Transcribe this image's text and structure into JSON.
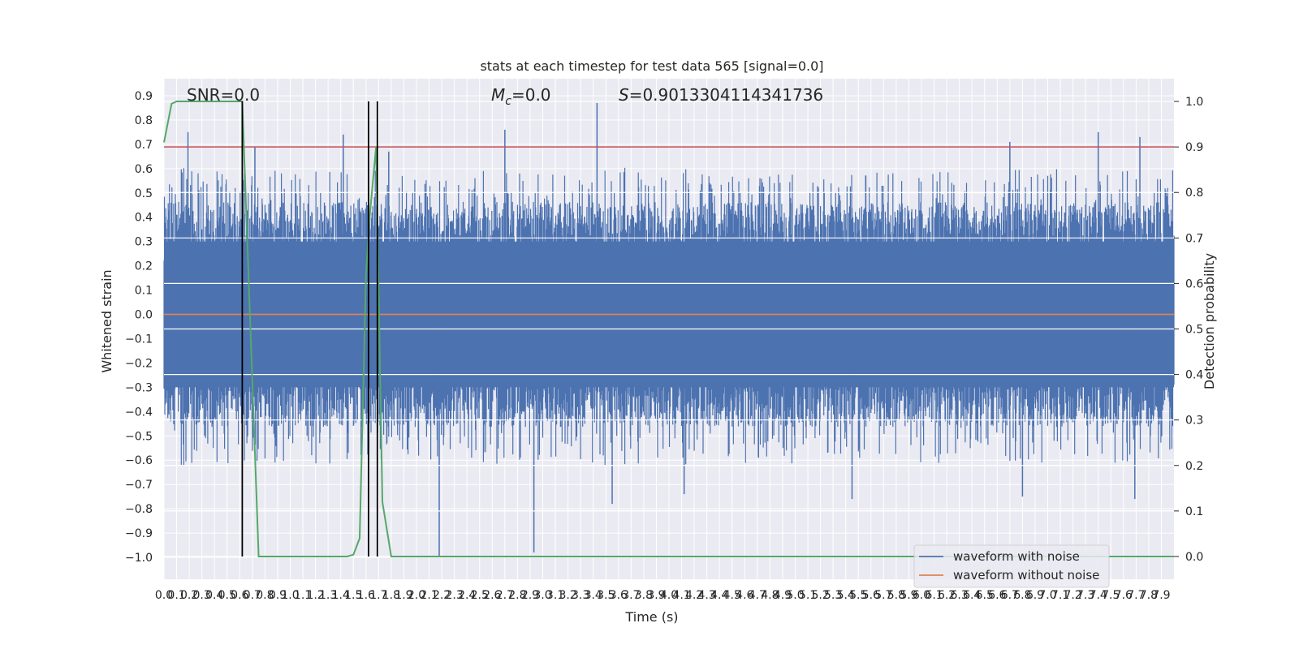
{
  "chart_data": {
    "type": "line",
    "title": "stats at each timestep for test data 565 [signal=0.0]",
    "xlabel": "Time (s)",
    "ylabel": "Whitened strain",
    "y2label": "Detection probability",
    "xlim": [
      0.0,
      8.0
    ],
    "ylim": [
      -1.09,
      0.97
    ],
    "y2lim": [
      -0.05,
      1.05
    ],
    "grid": true,
    "legend_position": "lower-right",
    "annotations": {
      "snr": "SNR=0.0",
      "mc": "=0.0",
      "s": "=0.9013304114341736"
    },
    "xticks": [
      "0.0",
      "0.1",
      "0.2",
      "0.3",
      "0.4",
      "0.5",
      "0.6",
      "0.7",
      "0.8",
      "0.9",
      "1.0",
      "1.1",
      "1.2",
      "1.3",
      "1.4",
      "1.5",
      "1.6",
      "1.7",
      "1.8",
      "1.9",
      "2.0",
      "2.1",
      "2.2",
      "2.3",
      "2.4",
      "2.5",
      "2.6",
      "2.7",
      "2.8",
      "2.9",
      "3.0",
      "3.1",
      "3.2",
      "3.3",
      "3.4",
      "3.5",
      "3.6",
      "3.7",
      "3.8",
      "3.9",
      "4.0",
      "4.1",
      "4.2",
      "4.3",
      "4.4",
      "4.5",
      "4.6",
      "4.7",
      "4.8",
      "4.9",
      "5.0",
      "5.1",
      "5.2",
      "5.3",
      "5.4",
      "5.5",
      "5.6",
      "5.7",
      "5.8",
      "5.9",
      "6.0",
      "6.1",
      "6.2",
      "6.3",
      "6.4",
      "6.5",
      "6.6",
      "6.7",
      "6.8",
      "6.9",
      "7.0",
      "7.1",
      "7.2",
      "7.3",
      "7.4",
      "7.5",
      "7.6",
      "7.7",
      "7.8",
      "7.9"
    ],
    "yticks": [
      "0.9",
      "0.8",
      "0.7",
      "0.6",
      "0.5",
      "0.4",
      "0.3",
      "0.2",
      "0.1",
      "0.0",
      "−0.1",
      "−0.2",
      "−0.3",
      "−0.4",
      "−0.5",
      "−0.6",
      "−0.7",
      "−0.8",
      "−0.9",
      "−1.0"
    ],
    "y2ticks": [
      "1.0",
      "0.9",
      "0.8",
      "0.7",
      "0.6",
      "0.5",
      "0.4",
      "0.3",
      "0.2",
      "0.1",
      "0.0"
    ],
    "series": [
      {
        "name": "waveform with noise",
        "color": "#4c72b0",
        "description_values": "dense noise band between about -0.45 and 0.45 with spikes to about ±0.75",
        "spikes": [
          {
            "x": 0.19,
            "y": 0.75
          },
          {
            "x": 0.72,
            "y": 0.69
          },
          {
            "x": 1.42,
            "y": 0.74
          },
          {
            "x": 1.78,
            "y": 0.67
          },
          {
            "x": 2.18,
            "y": -1.0
          },
          {
            "x": 2.7,
            "y": 0.76
          },
          {
            "x": 2.93,
            "y": -0.98
          },
          {
            "x": 3.43,
            "y": 0.87
          },
          {
            "x": 3.55,
            "y": -0.78
          },
          {
            "x": 4.12,
            "y": -0.74
          },
          {
            "x": 5.45,
            "y": -0.76
          },
          {
            "x": 6.7,
            "y": 0.71
          },
          {
            "x": 6.8,
            "y": -0.75
          },
          {
            "x": 7.4,
            "y": 0.75
          },
          {
            "x": 7.69,
            "y": -0.76
          },
          {
            "x": 7.73,
            "y": 0.73
          }
        ],
        "band": [
          0.45,
          -0.45
        ]
      },
      {
        "name": "waveform without noise",
        "color": "#dd8452",
        "x": [
          0.0,
          8.0
        ],
        "y": [
          0.0,
          0.0
        ]
      },
      {
        "name": "",
        "axis": "right",
        "color": "#55a868",
        "x": [
          0.0,
          0.06,
          0.1,
          0.62,
          0.75,
          1.45,
          1.5,
          1.55,
          1.6,
          1.63,
          1.68,
          1.73,
          1.8,
          8.0
        ],
        "y": [
          0.91,
          0.995,
          1.0,
          1.0,
          0.0,
          0.0,
          0.004,
          0.04,
          0.62,
          0.75,
          0.9,
          0.12,
          0.0,
          0.0
        ]
      }
    ],
    "threshold": {
      "axis": "right",
      "value": 0.9,
      "color": "#c44e52"
    },
    "vlines": [
      {
        "x": 0.62,
        "color": "#000000"
      },
      {
        "x": 1.62,
        "color": "#000000"
      },
      {
        "x": 1.69,
        "color": "#000000"
      }
    ],
    "legend": [
      "waveform with noise",
      "waveform without noise"
    ]
  }
}
